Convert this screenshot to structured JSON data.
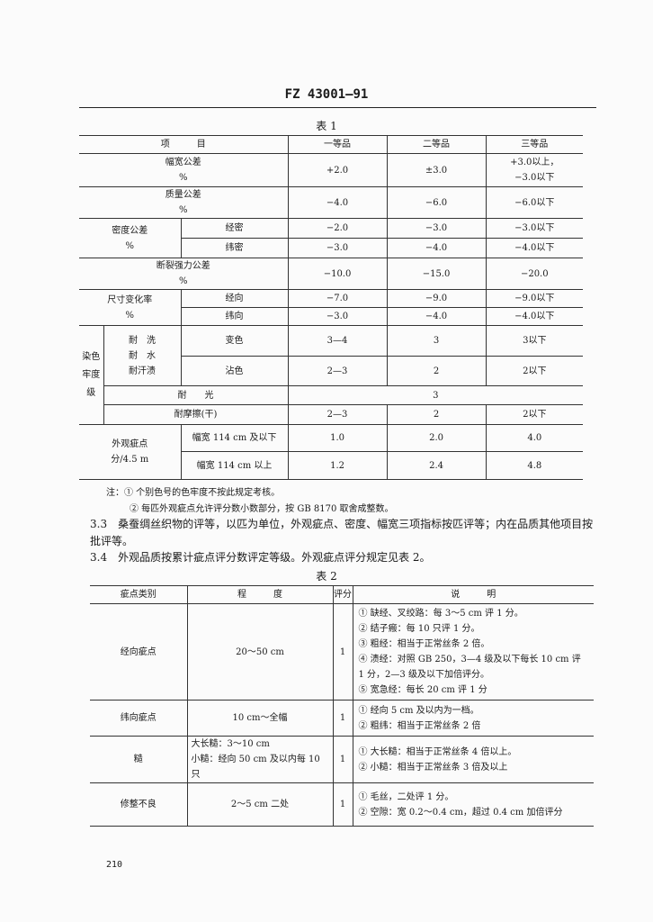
{
  "header": "FZ 43001—91",
  "table1": {
    "caption": "表 1",
    "headers": [
      "项　　　目",
      "一等品",
      "二等品",
      "三等品"
    ],
    "rows": {
      "width": {
        "label": "幅宽公差",
        "unit": "%",
        "v": [
          "+2.0",
          "±3.0",
          "+3.0以上，",
          "−3.0以下"
        ]
      },
      "mass": {
        "label": "质量公差",
        "unit": "%",
        "v": [
          "−4.0",
          "−6.0",
          "−6.0以下"
        ]
      },
      "density": {
        "label": "密度公差",
        "unit": "%",
        "warp": "经密",
        "weft": "纬密",
        "warp_v": [
          "−2.0",
          "−3.0",
          "−3.0以下"
        ],
        "weft_v": [
          "−3.0",
          "−4.0",
          "−4.0以下"
        ]
      },
      "strength": {
        "label": "断裂强力公差",
        "unit": "%",
        "v": [
          "−10.0",
          "−15.0",
          "−20.0"
        ]
      },
      "dim": {
        "label": "尺寸变化率",
        "unit": "%",
        "warp": "经向",
        "weft": "纬向",
        "warp_v": [
          "−7.0",
          "−9.0",
          "−9.0以下"
        ],
        "weft_v": [
          "−3.0",
          "−4.0",
          "−4.0以下"
        ]
      },
      "color": {
        "label": [
          "染色",
          "牢度",
          "级"
        ],
        "group": [
          "耐　洗",
          "耐　水",
          "耐汗渍"
        ],
        "change": "变色",
        "stain": "沾色",
        "change_v": [
          "3—4",
          "3",
          "3以下"
        ],
        "stain_v": [
          "2—3",
          "2",
          "2以下"
        ],
        "light": "耐　　光",
        "light_v": "3",
        "rub": "耐摩擦(干)",
        "rub_v": [
          "2—3",
          "2",
          "2以下"
        ]
      },
      "defect": {
        "label": "外观疵点",
        "unit": "分/4.5 m",
        "a": "幅宽 114 cm 及以下",
        "b": "幅宽 114 cm 以上",
        "a_v": [
          "1.0",
          "2.0",
          "4.0"
        ],
        "b_v": [
          "1.2",
          "2.4",
          "4.8"
        ]
      }
    }
  },
  "notes": [
    "注：① 个别色号的色牢度不按此规定考核。",
    "② 每匹外观疵点允许评分数小数部分，按 GB 8170 取舍成整数。"
  ],
  "para33": [
    "3.3　桑蚕绸丝织物的评等，以匹为单位，外观疵点、密度、幅宽三项指标按匹评等；内在品质其他项目按",
    "批评等。"
  ],
  "para34": "3.4　外观品质按累计疵点评分数评定等级。外观疵点评分规定见表 2。",
  "table2": {
    "caption": "表 2",
    "headers": [
      "疵点类别",
      "程　　　度",
      "评分",
      "说　　　明"
    ],
    "rows": [
      {
        "type": "经向疵点",
        "degree": [
          "20～50 cm"
        ],
        "score": "1",
        "desc": [
          "① 缺经、叉绞路：每 3～5 cm 评 1 分。",
          "② 结子瘢：每 10 只评 1 分。",
          "③ 粗经：相当于正常丝条 2 倍。",
          "④ 渍经：对照 GB 250，3—4 级及以下每长 10 cm 评",
          "1 分，2—3 级及以下加倍评分。",
          "⑤ 宽急经：每长 20 cm 评 1 分"
        ]
      },
      {
        "type": "纬向疵点",
        "degree": [
          "10 cm～全幅"
        ],
        "score": "1",
        "desc": [
          "① 经向 5 cm 及以内为一档。",
          "② 粗纬：相当于正常丝条 2 倍"
        ]
      },
      {
        "type": "糙",
        "degree": [
          "大长糙：3～10 cm",
          "小糙：经向 50 cm 及以内每 10 只"
        ],
        "score": "1",
        "desc": [
          "① 大长糙：相当于正常丝条 4 倍以上。",
          "② 小糙：相当于正常丝条 3 倍及以上"
        ]
      },
      {
        "type": "修整不良",
        "degree": [
          "2～5 cm 二处"
        ],
        "score": "1",
        "desc": [
          "① 毛丝，二处评 1 分。",
          "② 空隙：宽 0.2～0.4 cm，超过 0.4 cm 加倍评分"
        ]
      }
    ]
  },
  "page_number": "210"
}
